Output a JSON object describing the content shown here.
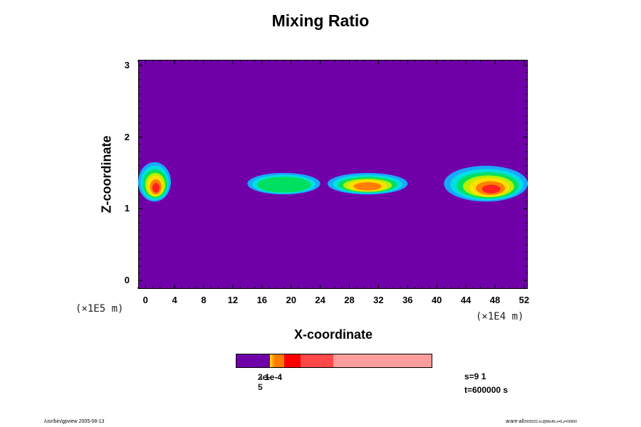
{
  "chart_data": {
    "type": "heatmap",
    "title": "Mixing Ratio",
    "xlabel": "X-coordinate",
    "ylabel": "Z-coordinate",
    "x_scale_label": "(×1E4 m)",
    "y_scale_label": "(×1E5 m)",
    "xlim": [
      -1,
      52.5
    ],
    "ylim": [
      -0.12,
      3.08
    ],
    "x_ticks": [
      "0",
      "4",
      "8",
      "12",
      "16",
      "20",
      "24",
      "28",
      "32",
      "36",
      "40",
      "44",
      "48",
      "52"
    ],
    "y_ticks": [
      "0",
      "1",
      "2",
      "3"
    ],
    "background_color": "#7000a8",
    "colorbar": {
      "labels": [
        "2e-5",
        "3e-5",
        "1e-4"
      ],
      "segments": [
        {
          "color": "#7000a8",
          "fraction": 0.17
        },
        {
          "color": "#ffd000",
          "fraction": 0.012
        },
        {
          "color": "#ffa000",
          "fraction": 0.012
        },
        {
          "color": "#ff7a00",
          "fraction": 0.05
        },
        {
          "color": "#ff0000",
          "fraction": 0.085
        },
        {
          "color": "#ff4848",
          "fraction": 0.166
        },
        {
          "color": "#ff9c9c",
          "fraction": 0.505
        }
      ]
    },
    "plumes": [
      {
        "x": [
          -1,
          3.5
        ],
        "z": [
          1.1,
          1.65
        ],
        "peak_color": "#ff2020"
      },
      {
        "x": [
          14,
          24
        ],
        "z": [
          1.2,
          1.5
        ],
        "peak_color": "#00e060"
      },
      {
        "x": [
          25,
          36
        ],
        "z": [
          1.2,
          1.5
        ],
        "peak_color": "#ff4848"
      },
      {
        "x": [
          41,
          52.5
        ],
        "z": [
          1.1,
          1.6
        ],
        "peak_color": "#ff2020"
      }
    ]
  },
  "info": {
    "step": "s=9 1",
    "time": "t=600000 s"
  },
  "footer": {
    "left": "/usr/bin/gpview 2005-08-13",
    "right": "arare-all",
    "right_sub": "2005022.nc@MixRt,x=0,z=00000"
  }
}
